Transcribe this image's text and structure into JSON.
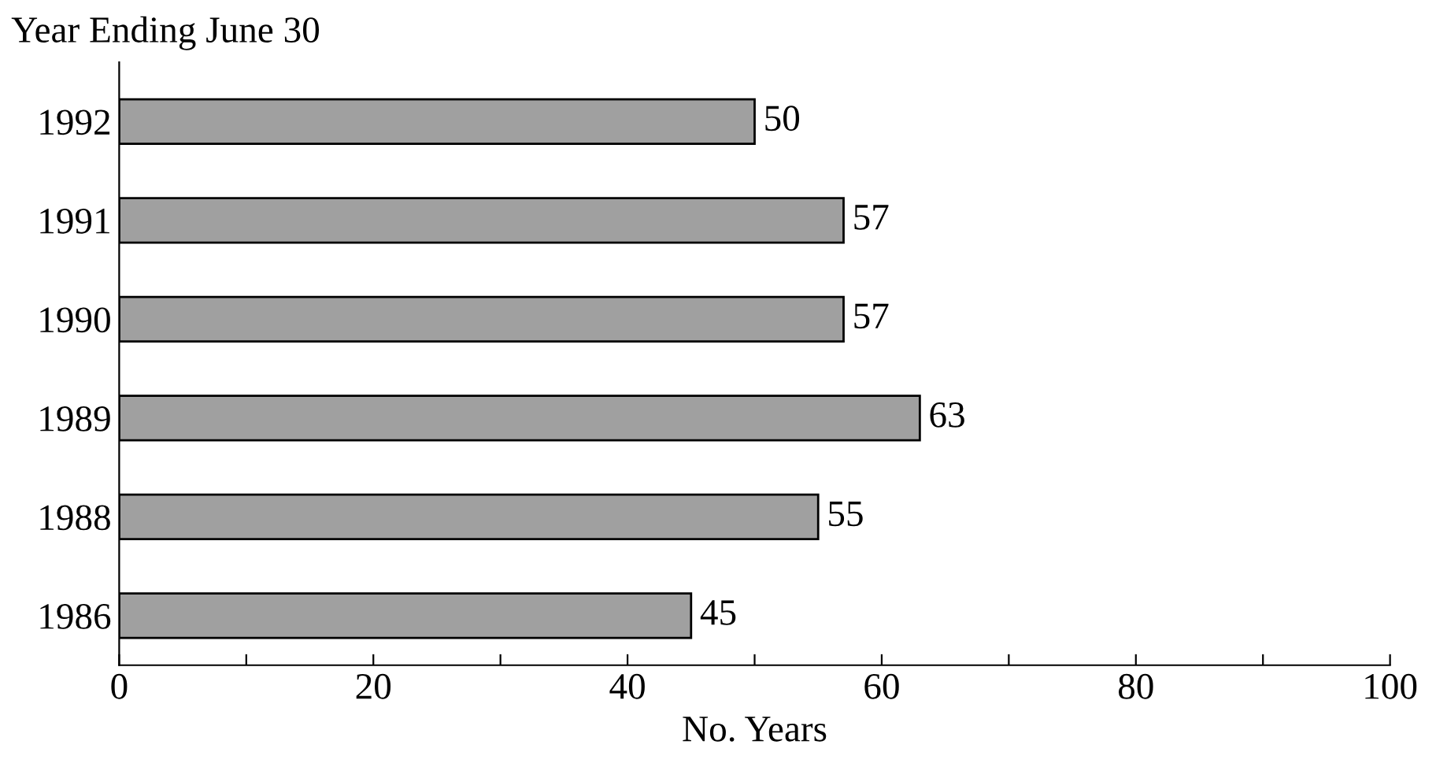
{
  "chart_data": {
    "type": "bar",
    "orientation": "horizontal",
    "ylabel": "Year Ending June 30",
    "xlabel": "No. Years",
    "categories": [
      "1992",
      "1991",
      "1990",
      "1989",
      "1988",
      "1986"
    ],
    "values": [
      50,
      57,
      57,
      63,
      55,
      45
    ],
    "color": "#a0a0a0",
    "data_labels": true,
    "xlim": [
      0,
      100
    ],
    "xticks": [
      0,
      {
        "value": 10,
        "label": null
      },
      20,
      {
        "value": 30,
        "label": null
      },
      40,
      {
        "value": 50,
        "label": null
      },
      60,
      {
        "value": 70,
        "label": null
      },
      80,
      {
        "value": 90,
        "label": null
      },
      100
    ],
    "grid": false,
    "legend": false
  }
}
